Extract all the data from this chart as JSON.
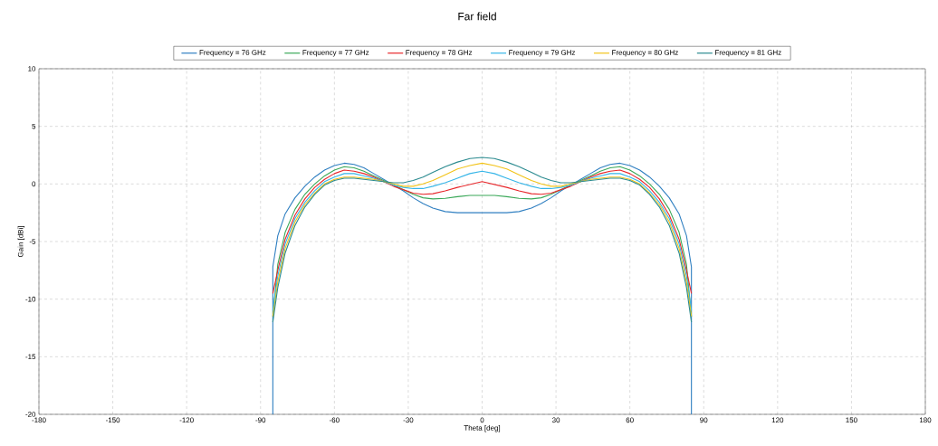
{
  "chart_data": {
    "type": "line",
    "title": "Far field",
    "xlabel": "Theta [deg]",
    "ylabel": "Gain [dBi]",
    "xlim": [
      -180,
      180
    ],
    "xticks": [
      -180,
      -150,
      -120,
      -90,
      -60,
      -30,
      0,
      30,
      60,
      90,
      120,
      150,
      180
    ],
    "ylim": [
      -20,
      10
    ],
    "yticks": [
      -20,
      -15,
      -10,
      -5,
      0,
      5,
      10
    ],
    "grid": true,
    "legend": "top",
    "marker": "none",
    "line_style": "solid",
    "x": [
      -85,
      -83,
      -80,
      -76,
      -72,
      -68,
      -64,
      -60,
      -56,
      -52,
      -48,
      -44,
      -40,
      -36,
      -32,
      -28,
      -24,
      -20,
      -15,
      -10,
      -5,
      0,
      5,
      10,
      15,
      20,
      24,
      28,
      32,
      36,
      40,
      44,
      48,
      52,
      56,
      60,
      64,
      68,
      72,
      76,
      80,
      83,
      85
    ],
    "series": [
      {
        "name": "Frequency = 76 GHz",
        "color": "#2f7fc1",
        "x": [
          -85,
          -85,
          -83,
          -80,
          -76,
          -72,
          -68,
          -64,
          -60,
          -56,
          -52,
          -48,
          -44,
          -40,
          -36,
          -32,
          -28,
          -24,
          -20,
          -15,
          -10,
          -5,
          0,
          5,
          10,
          15,
          20,
          24,
          28,
          32,
          36,
          40,
          44,
          48,
          52,
          56,
          60,
          64,
          68,
          72,
          76,
          80,
          83,
          85,
          85
        ],
        "values": [
          -20,
          -7.2,
          -4.5,
          -2.6,
          -1.2,
          -0.2,
          0.6,
          1.2,
          1.6,
          1.8,
          1.7,
          1.4,
          0.9,
          0.4,
          -0.1,
          -0.6,
          -1.2,
          -1.7,
          -2.1,
          -2.4,
          -2.5,
          -2.5,
          -2.5,
          -2.5,
          -2.5,
          -2.4,
          -2.1,
          -1.7,
          -1.2,
          -0.6,
          -0.1,
          0.4,
          0.9,
          1.4,
          1.7,
          1.8,
          1.6,
          1.2,
          0.6,
          -0.2,
          -1.2,
          -2.6,
          -4.5,
          -7.2,
          -20
        ]
      },
      {
        "name": "Frequency = 77 GHz",
        "color": "#3aa858",
        "values": [
          -11.5,
          -7.0,
          -4.2,
          -2.2,
          -0.9,
          0.0,
          0.7,
          1.2,
          1.5,
          1.4,
          1.1,
          0.7,
          0.3,
          -0.1,
          -0.5,
          -0.9,
          -1.2,
          -1.3,
          -1.25,
          -1.1,
          -1.0,
          -1.0,
          -1.0,
          -1.1,
          -1.25,
          -1.3,
          -1.2,
          -0.9,
          -0.5,
          -0.1,
          0.3,
          0.7,
          1.1,
          1.4,
          1.5,
          1.2,
          0.7,
          0.0,
          -0.9,
          -2.2,
          -4.2,
          -7.0,
          -11.5
        ]
      },
      {
        "name": "Frequency = 78 GHz",
        "color": "#e8262a",
        "values": [
          -9.5,
          -7.5,
          -4.8,
          -2.7,
          -1.3,
          -0.3,
          0.4,
          0.9,
          1.2,
          1.1,
          0.9,
          0.6,
          0.2,
          -0.2,
          -0.5,
          -0.8,
          -0.9,
          -0.85,
          -0.6,
          -0.3,
          -0.05,
          0.2,
          -0.05,
          -0.3,
          -0.6,
          -0.85,
          -0.9,
          -0.8,
          -0.5,
          -0.2,
          0.2,
          0.6,
          0.9,
          1.1,
          1.2,
          0.9,
          0.4,
          -0.3,
          -1.3,
          -2.7,
          -4.8,
          -7.5,
          -9.5
        ]
      },
      {
        "name": "Frequency = 79 GHz",
        "color": "#35b5e8",
        "values": [
          -11.0,
          -8.0,
          -5.2,
          -3.0,
          -1.6,
          -0.6,
          0.2,
          0.6,
          0.9,
          0.9,
          0.7,
          0.5,
          0.2,
          -0.1,
          -0.3,
          -0.4,
          -0.4,
          -0.2,
          0.1,
          0.5,
          0.9,
          1.1,
          0.9,
          0.5,
          0.1,
          -0.2,
          -0.4,
          -0.4,
          -0.3,
          -0.1,
          0.2,
          0.5,
          0.7,
          0.9,
          0.9,
          0.6,
          0.2,
          -0.6,
          -1.6,
          -3.0,
          -5.2,
          -8.0,
          -11.0
        ]
      },
      {
        "name": "Frequency = 80 GHz",
        "color": "#f2c318",
        "values": [
          -11.5,
          -8.5,
          -5.6,
          -3.3,
          -1.8,
          -0.8,
          0.0,
          0.4,
          0.6,
          0.6,
          0.5,
          0.4,
          0.2,
          0.0,
          -0.2,
          -0.2,
          0.0,
          0.3,
          0.8,
          1.3,
          1.6,
          1.8,
          1.6,
          1.3,
          0.8,
          0.3,
          0.0,
          -0.2,
          -0.2,
          0.0,
          0.2,
          0.4,
          0.5,
          0.6,
          0.6,
          0.4,
          0.0,
          -0.8,
          -1.8,
          -3.3,
          -5.6,
          -8.5,
          -11.5
        ]
      },
      {
        "name": "Frequency = 81 GHz",
        "color": "#2a8a8f",
        "values": [
          -12.0,
          -9.0,
          -6.0,
          -3.6,
          -2.0,
          -0.9,
          -0.1,
          0.3,
          0.5,
          0.5,
          0.4,
          0.3,
          0.2,
          0.1,
          0.1,
          0.3,
          0.6,
          1.0,
          1.5,
          1.9,
          2.2,
          2.3,
          2.2,
          1.9,
          1.5,
          1.0,
          0.6,
          0.3,
          0.1,
          0.1,
          0.2,
          0.3,
          0.4,
          0.5,
          0.5,
          0.3,
          -0.1,
          -0.9,
          -2.0,
          -3.6,
          -6.0,
          -9.0,
          -12.0
        ]
      }
    ]
  }
}
